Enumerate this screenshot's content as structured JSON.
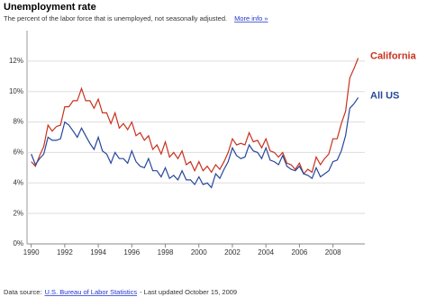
{
  "header": {
    "title": "Unemployment rate",
    "subtitle": "The percent of the labor force that is unemployed, not seasonally adjusted.",
    "link": "More info »"
  },
  "footer": {
    "prefix": "Data source:",
    "source": "U.S. Bureau of Labor Statistics",
    "updated": "- Last updated October 15, 2009"
  },
  "chart_data": {
    "type": "line",
    "x": [
      1990,
      1990.25,
      1990.5,
      1990.75,
      1991,
      1991.25,
      1991.5,
      1991.75,
      1992,
      1992.25,
      1992.5,
      1992.75,
      1993,
      1993.25,
      1993.5,
      1993.75,
      1994,
      1994.25,
      1994.5,
      1994.75,
      1995,
      1995.25,
      1995.5,
      1995.75,
      1996,
      1996.25,
      1996.5,
      1996.75,
      1997,
      1997.25,
      1997.5,
      1997.75,
      1998,
      1998.25,
      1998.5,
      1998.75,
      1999,
      1999.25,
      1999.5,
      1999.75,
      2000,
      2000.25,
      2000.5,
      2000.75,
      2001,
      2001.25,
      2001.5,
      2001.75,
      2002,
      2002.25,
      2002.5,
      2002.75,
      2003,
      2003.25,
      2003.5,
      2003.75,
      2004,
      2004.25,
      2004.5,
      2004.75,
      2005,
      2005.25,
      2005.5,
      2005.75,
      2006,
      2006.25,
      2006.5,
      2006.75,
      2007,
      2007.25,
      2007.5,
      2007.75,
      2008,
      2008.25,
      2008.5,
      2008.75,
      2009,
      2009.25,
      2009.5
    ],
    "series": [
      {
        "name": "California",
        "color": "#c8321e",
        "values": [
          5.4,
          5.1,
          5.8,
          6.4,
          7.8,
          7.4,
          7.7,
          7.8,
          9.0,
          9.0,
          9.4,
          9.4,
          10.2,
          9.4,
          9.4,
          8.9,
          9.5,
          8.6,
          8.6,
          7.9,
          8.6,
          7.6,
          7.9,
          7.5,
          8.0,
          7.1,
          7.3,
          6.8,
          7.1,
          6.2,
          6.5,
          5.9,
          6.7,
          5.7,
          6.0,
          5.6,
          6.1,
          5.2,
          5.4,
          4.8,
          5.4,
          4.8,
          5.1,
          4.7,
          5.2,
          4.9,
          5.4,
          6.0,
          6.9,
          6.5,
          6.6,
          6.5,
          7.3,
          6.7,
          6.8,
          6.3,
          6.9,
          6.1,
          6.0,
          5.7,
          6.0,
          5.3,
          5.2,
          4.9,
          5.3,
          4.6,
          4.9,
          4.7,
          5.7,
          5.2,
          5.6,
          5.9,
          6.9,
          6.9,
          7.9,
          8.7,
          10.9,
          11.5,
          12.2
        ]
      },
      {
        "name": "All US",
        "color": "#26479a",
        "values": [
          5.9,
          5.2,
          5.6,
          5.9,
          7.0,
          6.8,
          6.8,
          6.9,
          8.0,
          7.8,
          7.4,
          7.0,
          7.6,
          7.1,
          6.6,
          6.2,
          7.0,
          6.1,
          5.9,
          5.3,
          6.0,
          5.6,
          5.6,
          5.3,
          6.1,
          5.4,
          5.1,
          5.0,
          5.6,
          4.8,
          4.8,
          4.4,
          5.0,
          4.3,
          4.5,
          4.2,
          4.8,
          4.2,
          4.2,
          3.9,
          4.4,
          3.9,
          4.0,
          3.7,
          4.6,
          4.3,
          4.9,
          5.4,
          6.3,
          5.8,
          5.6,
          5.7,
          6.5,
          6.1,
          6.0,
          5.6,
          6.3,
          5.5,
          5.4,
          5.2,
          5.8,
          5.1,
          4.9,
          4.8,
          5.1,
          4.6,
          4.5,
          4.3,
          5.0,
          4.4,
          4.6,
          4.8,
          5.4,
          5.5,
          6.1,
          7.1,
          8.9,
          9.2,
          9.6
        ]
      }
    ],
    "xlim": [
      1989.75,
      2009.9
    ],
    "xticks": [
      1990,
      1992,
      1994,
      1996,
      1998,
      2000,
      2002,
      2004,
      2006,
      2008
    ],
    "ylim": [
      0,
      14
    ],
    "yticks": [
      {
        "value": 0,
        "label": "0%"
      },
      {
        "value": 2,
        "label": "2%"
      },
      {
        "value": 4,
        "label": "4%"
      },
      {
        "value": 6,
        "label": "6%"
      },
      {
        "value": 8,
        "label": "8%"
      },
      {
        "value": 10,
        "label": "10%"
      },
      {
        "value": 12,
        "label": "12%"
      }
    ],
    "grid": true
  }
}
